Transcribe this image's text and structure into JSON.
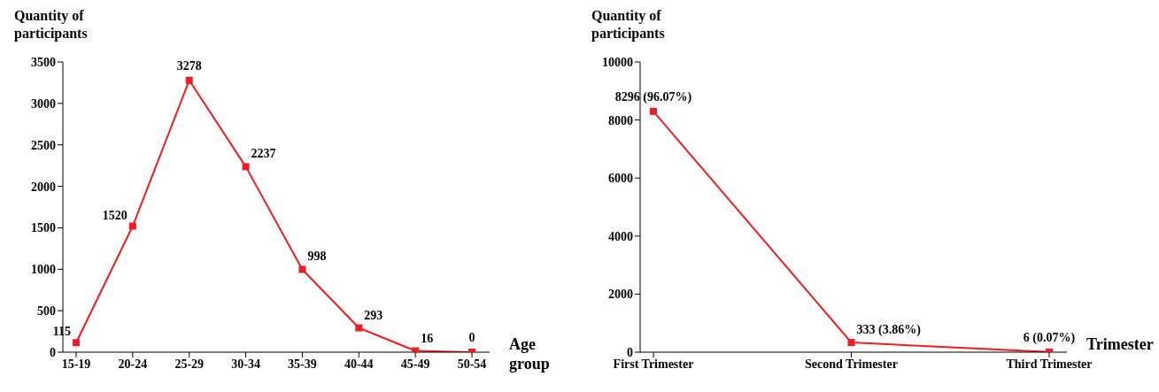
{
  "chart_data": [
    {
      "type": "line",
      "ylabel": "Quantity of participants",
      "xlabel": "Age group",
      "categories": [
        "15-19",
        "20-24",
        "25-29",
        "30-34",
        "35-39",
        "40-44",
        "45-49",
        "50-54"
      ],
      "series": [
        {
          "color": "#ee1c25",
          "values": [
            115,
            1520,
            3278,
            2237,
            998,
            293,
            16,
            0
          ]
        }
      ],
      "ylim": [
        0,
        3500
      ],
      "yticks": [
        0,
        500,
        1000,
        1500,
        2000,
        2500,
        3000,
        3500
      ],
      "data_labels": true,
      "marker": "square",
      "grid": false,
      "legend": false
    },
    {
      "type": "line",
      "ylabel": "Quantity of participants",
      "xlabel": "Trimester",
      "categories": [
        "First Trimester",
        "Second Trimester",
        "Third Trimester"
      ],
      "series": [
        {
          "color": "#ee1c25",
          "values": [
            8296,
            333,
            6
          ],
          "value_labels": [
            "8296 (96.07%)",
            "333 (3.86%)",
            "6 (0.07%)"
          ]
        }
      ],
      "ylim": [
        0,
        10000
      ],
      "yticks": [
        0,
        2000,
        4000,
        6000,
        8000,
        10000
      ],
      "marker": "square",
      "grid": false,
      "legend": false
    }
  ]
}
